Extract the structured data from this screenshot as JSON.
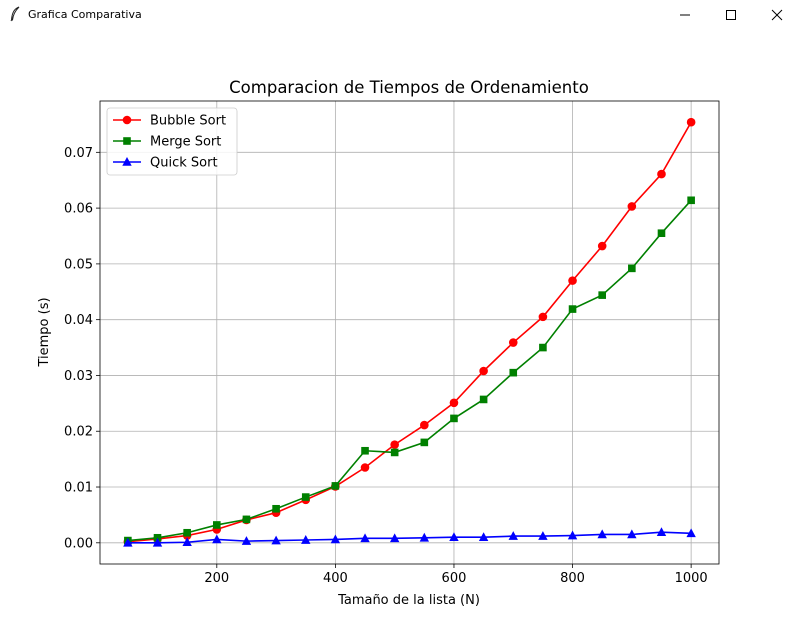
{
  "window": {
    "title": "Grafica Comparativa",
    "icon": "feather-icon",
    "controls": [
      "minimize-icon",
      "maximize-icon",
      "close-icon"
    ]
  },
  "chart_data": {
    "type": "line",
    "title": "Comparacion de Tiempos de Ordenamiento",
    "xlabel": "Tamaño de la lista (N)",
    "ylabel": "Tiempo (s)",
    "xlim": [
      3,
      1047
    ],
    "ylim": [
      -0.0038,
      0.0792
    ],
    "xticks": [
      200,
      400,
      600,
      800,
      1000
    ],
    "yticks": [
      0.0,
      0.01,
      0.02,
      0.03,
      0.04,
      0.05,
      0.06,
      0.07
    ],
    "ytick_labels": [
      "0.00",
      "0.01",
      "0.02",
      "0.03",
      "0.04",
      "0.05",
      "0.06",
      "0.07"
    ],
    "grid": true,
    "legend": "top-left",
    "x": [
      50,
      100,
      150,
      200,
      250,
      300,
      350,
      400,
      450,
      500,
      550,
      600,
      650,
      700,
      750,
      800,
      850,
      900,
      950,
      1000
    ],
    "series": [
      {
        "name": "Bubble Sort",
        "color": "#ff0000",
        "marker": "circle",
        "values": [
          0.0002,
          0.0007,
          0.0013,
          0.0024,
          0.0041,
          0.0054,
          0.0077,
          0.0101,
          0.0135,
          0.0176,
          0.0211,
          0.0251,
          0.0308,
          0.0359,
          0.0405,
          0.047,
          0.0532,
          0.0603,
          0.0661,
          0.0754
        ]
      },
      {
        "name": "Merge Sort",
        "color": "#008000",
        "marker": "square",
        "values": [
          0.0004,
          0.0009,
          0.0018,
          0.0032,
          0.0042,
          0.0061,
          0.0082,
          0.0102,
          0.0165,
          0.0162,
          0.018,
          0.0223,
          0.0257,
          0.0305,
          0.035,
          0.0419,
          0.0444,
          0.0492,
          0.0555,
          0.0614
        ]
      },
      {
        "name": "Quick Sort",
        "color": "#0000ff",
        "marker": "triangle",
        "values": [
          0.0,
          0.0,
          0.0001,
          0.0006,
          0.0003,
          0.0004,
          0.0005,
          0.0006,
          0.0008,
          0.0008,
          0.0009,
          0.001,
          0.001,
          0.0012,
          0.0012,
          0.0013,
          0.0015,
          0.0015,
          0.0019,
          0.0017
        ]
      }
    ]
  }
}
